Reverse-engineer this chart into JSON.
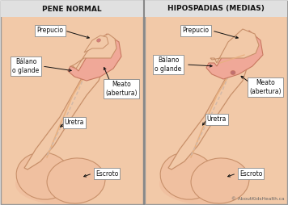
{
  "panel_bg": "#f2c9a8",
  "title_bg": "#e0e0e0",
  "border_color": "#999999",
  "title_left": "PENE NORMAL",
  "title_right": "HIPOSPADIAS (MEDIAS)",
  "copyright": "© AboutKidsHealth.ca",
  "skin_base": "#f2c9a8",
  "skin_shadow": "#e8b080",
  "skin_edge": "#c8906a",
  "glans_fill": "#f0a898",
  "glans_edge": "#c87860",
  "glans_inner": "#f8c8c0",
  "shaft_fill": "#f2c9a8",
  "shaft_edge": "#c8906a",
  "prepuce_fill": "#f2c9a8",
  "prepuce_edge": "#c8906a",
  "scrotum_fill": "#f0c0a0",
  "scrotum_edge": "#c8906a",
  "urethra_color": "#d8c0b0",
  "label_bg": "#ffffff",
  "label_border": "#888888",
  "label_color": "#111111",
  "arrow_color": "#111111",
  "divider_color": "#888888"
}
